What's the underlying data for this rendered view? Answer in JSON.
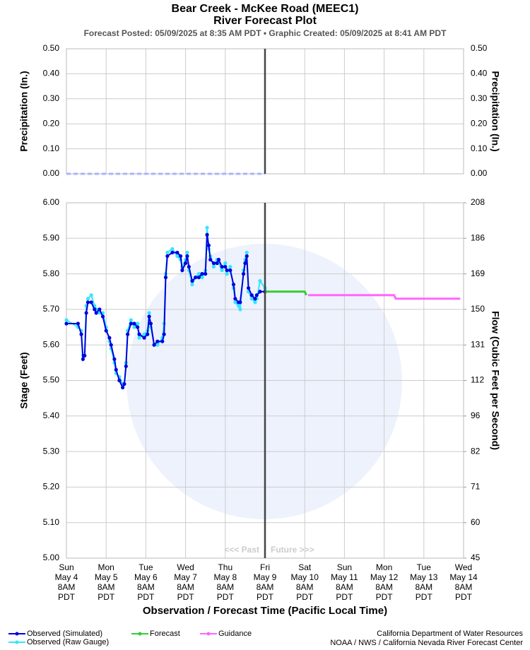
{
  "title": "Bear Creek - McKee Road (MEEC1)",
  "subtitle": "River Forecast Plot",
  "posted": "Forecast Posted: 05/09/2025 at 8:35 AM PDT  •  Graphic Created: 05/09/2025 at 8:41 AM PDT",
  "xlabel": "Observation / Forecast Time (Pacific Local Time)",
  "credits": [
    "California Department of Water Resources",
    "NOAA / NWS / California Nevada River Forecast Center"
  ],
  "chart_data": [
    {
      "type": "line",
      "ylabel": "Precipitation (In.)",
      "y2label": "Precipitation (In.)",
      "xlim": [
        0,
        240
      ],
      "xticks": [
        0,
        24,
        48,
        72,
        96,
        120,
        144,
        168,
        192,
        216,
        240
      ],
      "ylim": [
        0,
        0.5
      ],
      "yticks": [
        {
          "value": 0,
          "label": "0.00"
        },
        {
          "value": 0.1,
          "label": "0.10"
        },
        {
          "value": 0.2,
          "label": "0.20"
        },
        {
          "value": 0.3,
          "label": "0.30"
        },
        {
          "value": 0.4,
          "label": "0.40"
        },
        {
          "value": 0.5,
          "label": "0.50"
        }
      ],
      "grid": true,
      "vline_x": 120,
      "series": [
        {
          "color": "#a9b4ff",
          "dashed": true,
          "x": [
            0,
            120
          ],
          "values": [
            0,
            0
          ]
        }
      ]
    },
    {
      "type": "line",
      "ylabel": "Stage (Feet)",
      "y2label": "Flow (Cubic Feet per Second)",
      "xlim": [
        0,
        240
      ],
      "xticks": [
        {
          "value": 0,
          "label": [
            "Sun",
            "May 4",
            "8AM",
            "PDT"
          ]
        },
        {
          "value": 24,
          "label": [
            "Mon",
            "May 5",
            "8AM",
            "PDT"
          ]
        },
        {
          "value": 48,
          "label": [
            "Tue",
            "May 6",
            "8AM",
            "PDT"
          ]
        },
        {
          "value": 72,
          "label": [
            "Wed",
            "May 7",
            "8AM",
            "PDT"
          ]
        },
        {
          "value": 96,
          "label": [
            "Thu",
            "May 8",
            "8AM",
            "PDT"
          ]
        },
        {
          "value": 120,
          "label": [
            "Fri",
            "May 9",
            "8AM",
            "PDT"
          ]
        },
        {
          "value": 144,
          "label": [
            "Sat",
            "May 10",
            "8AM",
            "PDT"
          ]
        },
        {
          "value": 168,
          "label": [
            "Sun",
            "May 11",
            "8AM",
            "PDT"
          ]
        },
        {
          "value": 192,
          "label": [
            "Mon",
            "May 12",
            "8AM",
            "PDT"
          ]
        },
        {
          "value": 216,
          "label": [
            "Tue",
            "May 13",
            "8AM",
            "PDT"
          ]
        },
        {
          "value": 240,
          "label": [
            "Wed",
            "May 14",
            "8AM",
            "PDT"
          ]
        }
      ],
      "ylim": [
        5,
        6
      ],
      "yticks": [
        {
          "value": 5,
          "label": "5.00"
        },
        {
          "value": 5.1,
          "label": "5.10"
        },
        {
          "value": 5.2,
          "label": "5.20"
        },
        {
          "value": 5.3,
          "label": "5.30"
        },
        {
          "value": 5.4,
          "label": "5.40"
        },
        {
          "value": 5.5,
          "label": "5.50"
        },
        {
          "value": 5.6,
          "label": "5.60"
        },
        {
          "value": 5.7,
          "label": "5.70"
        },
        {
          "value": 5.8,
          "label": "5.80"
        },
        {
          "value": 5.9,
          "label": "5.90"
        },
        {
          "value": 6,
          "label": "6.00"
        }
      ],
      "y2ticks": [
        45,
        60,
        71,
        82,
        96,
        112,
        131,
        150,
        169,
        186,
        208
      ],
      "grid": true,
      "vline_x": 120,
      "annotations": [
        "<<< Past",
        "Future >>>"
      ],
      "series": [
        {
          "name": "Observed (Raw Gauge)",
          "color": "#33e6ff",
          "markers": true,
          "x": [
            0,
            7,
            9,
            10,
            11,
            12,
            13,
            15,
            17,
            18,
            20,
            22,
            24,
            26,
            27,
            29,
            30,
            32,
            34,
            35,
            36,
            37,
            39,
            41,
            43,
            44,
            47,
            49,
            50,
            51,
            53,
            55,
            58,
            59,
            60,
            61,
            64,
            67,
            69,
            70,
            72,
            73,
            74,
            76,
            78,
            80,
            82,
            84,
            85,
            86,
            87,
            89,
            91,
            92,
            94,
            96,
            97,
            99,
            101,
            102,
            104,
            105,
            107,
            108,
            109,
            110,
            112,
            114,
            115,
            117,
            120
          ],
          "values": [
            5.67,
            5.65,
            5.64,
            5.57,
            5.57,
            5.71,
            5.73,
            5.74,
            5.71,
            5.7,
            5.69,
            5.69,
            5.65,
            5.61,
            5.59,
            5.55,
            5.52,
            5.51,
            5.49,
            5.49,
            5.55,
            5.64,
            5.67,
            5.65,
            5.66,
            5.62,
            5.63,
            5.64,
            5.69,
            5.65,
            5.6,
            5.6,
            5.62,
            5.66,
            5.8,
            5.86,
            5.87,
            5.85,
            5.84,
            5.82,
            5.84,
            5.86,
            5.81,
            5.77,
            5.79,
            5.8,
            5.79,
            5.81,
            5.93,
            5.87,
            5.85,
            5.82,
            5.84,
            5.83,
            5.81,
            5.83,
            5.8,
            5.82,
            5.76,
            5.72,
            5.71,
            5.7,
            5.81,
            5.84,
            5.86,
            5.75,
            5.73,
            5.72,
            5.73,
            5.78,
            5.76
          ]
        },
        {
          "name": "Observed (Simulated)",
          "color": "#0000dd",
          "markers": true,
          "x": [
            0,
            7,
            9,
            10,
            11,
            12,
            13,
            15,
            17,
            18,
            20,
            22,
            24,
            26,
            27,
            29,
            30,
            32,
            34,
            35,
            36,
            37,
            39,
            41,
            43,
            44,
            47,
            49,
            50,
            51,
            53,
            55,
            58,
            59,
            60,
            61,
            64,
            67,
            69,
            70,
            72,
            73,
            74,
            76,
            78,
            80,
            82,
            84,
            85,
            86,
            87,
            89,
            91,
            92,
            94,
            96,
            97,
            99,
            101,
            102,
            104,
            105,
            107,
            108,
            109,
            110,
            112,
            114,
            115,
            117,
            120
          ],
          "values": [
            5.66,
            5.66,
            5.63,
            5.56,
            5.57,
            5.69,
            5.72,
            5.72,
            5.7,
            5.69,
            5.7,
            5.68,
            5.64,
            5.62,
            5.6,
            5.56,
            5.53,
            5.5,
            5.48,
            5.49,
            5.54,
            5.63,
            5.66,
            5.66,
            5.65,
            5.63,
            5.62,
            5.63,
            5.68,
            5.66,
            5.6,
            5.61,
            5.61,
            5.63,
            5.79,
            5.85,
            5.86,
            5.86,
            5.85,
            5.81,
            5.83,
            5.85,
            5.82,
            5.78,
            5.79,
            5.79,
            5.8,
            5.8,
            5.91,
            5.88,
            5.84,
            5.83,
            5.83,
            5.84,
            5.82,
            5.82,
            5.81,
            5.81,
            5.77,
            5.73,
            5.72,
            5.72,
            5.8,
            5.83,
            5.85,
            5.76,
            5.74,
            5.73,
            5.74,
            5.75,
            5.75
          ]
        },
        {
          "name": "Forecast",
          "color": "#33cc33",
          "markers": false,
          "x": [
            120,
            144,
            145
          ],
          "values": [
            5.75,
            5.75,
            5.74
          ]
        },
        {
          "name": "Guidance",
          "color": "#ff66ff",
          "markers": false,
          "x": [
            146,
            198,
            199,
            238
          ],
          "values": [
            5.74,
            5.74,
            5.73,
            5.73
          ]
        }
      ]
    }
  ]
}
